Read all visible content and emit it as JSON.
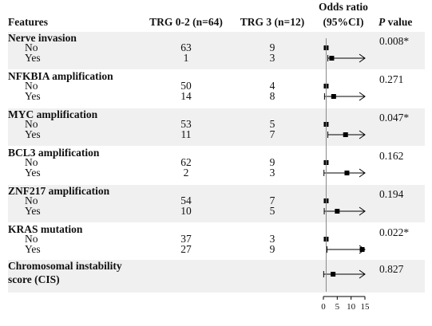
{
  "chart_data": {
    "type": "table",
    "headers": {
      "features": "Features",
      "trg02": "TRG 0-2 (n=64)",
      "trg3": "TRG 3 (n=12)",
      "or_line1": "Odds ratio",
      "or_line2": "(95%CI)",
      "p_italic": "P",
      "p_rest": " value"
    },
    "groups": [
      {
        "feature": [
          "Nerve invasion"
        ],
        "p_value": "0.008*",
        "rows": [
          {
            "label": "No",
            "trg02": "63",
            "trg3": "9",
            "or": 1,
            "ci": [
              1,
              1
            ]
          },
          {
            "label": "Yes",
            "trg02": "1",
            "trg3": "3",
            "or": 3,
            "ci": [
              1.6,
              15
            ]
          }
        ]
      },
      {
        "feature": [
          "NFKBIA amplification"
        ],
        "p_value": "0.271",
        "rows": [
          {
            "label": "No",
            "trg02": "50",
            "trg3": "4",
            "or": 1,
            "ci": [
              1,
              1
            ]
          },
          {
            "label": "Yes",
            "trg02": "14",
            "trg3": "8",
            "or": 3.7,
            "ci": [
              0.4,
              15
            ]
          }
        ]
      },
      {
        "feature": [
          "MYC amplification"
        ],
        "p_value": "0.047*",
        "rows": [
          {
            "label": "No",
            "trg02": "53",
            "trg3": "5",
            "or": 1,
            "ci": [
              1,
              1
            ]
          },
          {
            "label": "Yes",
            "trg02": "11",
            "trg3": "7",
            "or": 8,
            "ci": [
              1.6,
              15
            ]
          }
        ]
      },
      {
        "feature": [
          "BCL3 amplification"
        ],
        "p_value": "0.162",
        "rows": [
          {
            "label": "No",
            "trg02": "62",
            "trg3": "9",
            "or": 1,
            "ci": [
              1,
              1
            ]
          },
          {
            "label": "Yes",
            "trg02": "2",
            "trg3": "3",
            "or": 8.5,
            "ci": [
              0.2,
              15
            ]
          }
        ]
      },
      {
        "feature": [
          "ZNF217 amplification"
        ],
        "p_value": "0.194",
        "rows": [
          {
            "label": "No",
            "trg02": "54",
            "trg3": "7",
            "or": 1,
            "ci": [
              1,
              1
            ]
          },
          {
            "label": "Yes",
            "trg02": "10",
            "trg3": "5",
            "or": 5,
            "ci": [
              0.3,
              15
            ]
          }
        ]
      },
      {
        "feature": [
          "KRAS mutation"
        ],
        "p_value": "0.022*",
        "rows": [
          {
            "label": "No",
            "trg02": "37",
            "trg3": "3",
            "or": 1,
            "ci": [
              1,
              1
            ]
          },
          {
            "label": "Yes",
            "trg02": "27",
            "trg3": "9",
            "or": 14,
            "ci": [
              1.3,
              15
            ]
          }
        ]
      },
      {
        "feature": [
          "Chromosomal instability",
          "score (CIS)"
        ],
        "p_value": "0.827",
        "rows": [
          {
            "label": "",
            "trg02": "",
            "trg3": "",
            "or": 3.5,
            "ci": [
              0.1,
              15
            ]
          }
        ]
      }
    ],
    "x_ticks": [
      0,
      5,
      10,
      15
    ],
    "xlim": [
      0,
      15
    ],
    "reference_line": 1,
    "arrow_on_upper_ci": true,
    "shaded_bands": [
      0,
      2,
      4,
      6
    ]
  }
}
